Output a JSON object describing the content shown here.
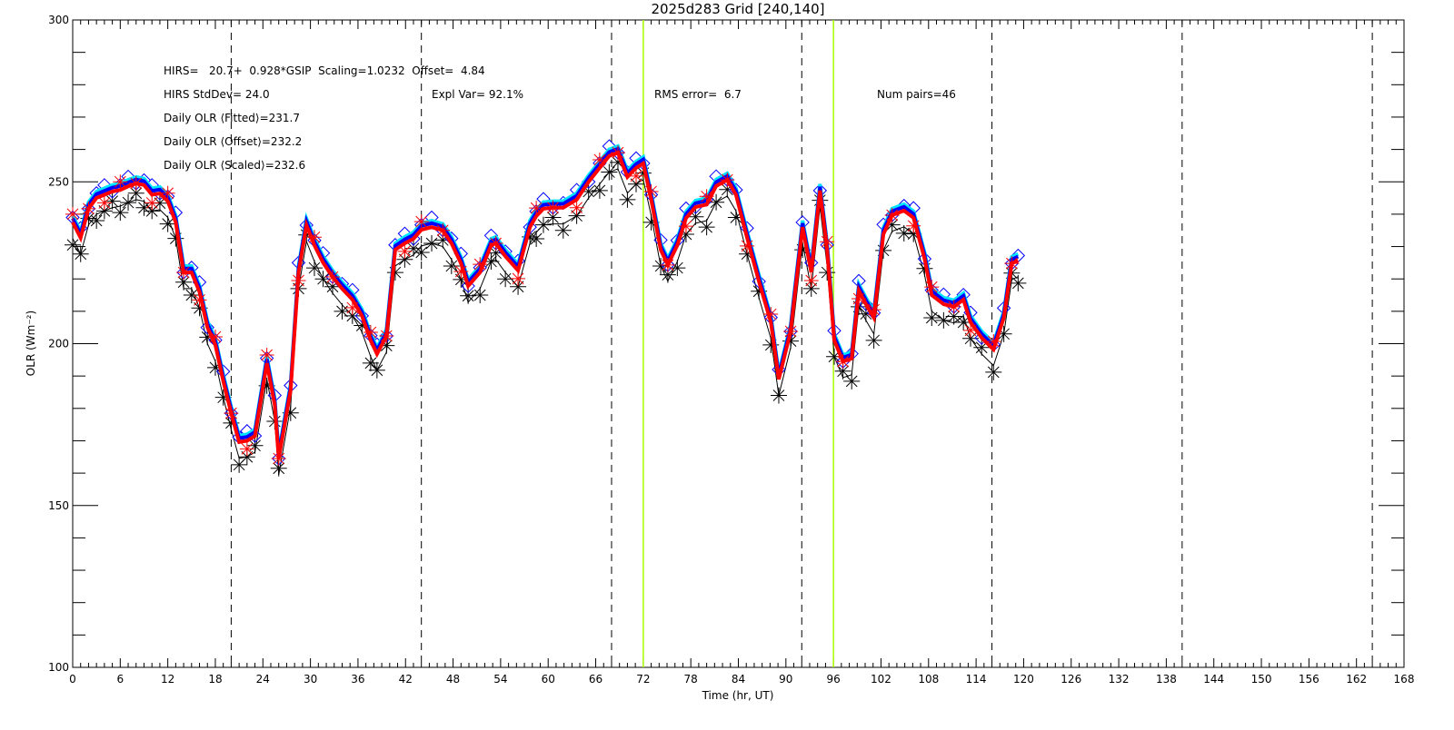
{
  "chart_data": {
    "type": "line",
    "title": "2025d283 Grid [240,140]",
    "xlabel": "Time (hr, UT)",
    "ylabel": "OLR (Wm⁻²)",
    "xlim": [
      0,
      168
    ],
    "ylim": [
      100,
      300
    ],
    "xticks": [
      0,
      6,
      12,
      18,
      24,
      30,
      36,
      42,
      48,
      54,
      60,
      66,
      72,
      78,
      84,
      90,
      96,
      102,
      108,
      114,
      120,
      126,
      132,
      138,
      144,
      150,
      156,
      162,
      168
    ],
    "yticks": [
      100,
      150,
      200,
      250,
      300
    ],
    "grid": false,
    "dashed_vlines": [
      20,
      44,
      68,
      92,
      116,
      140,
      164
    ],
    "green_vlines": [
      72,
      96
    ],
    "colors": {
      "scaled": "#ff0000",
      "offset": "#0000ff",
      "fitted": "#00e5ff",
      "gsip": "#000000",
      "hirs_diamond": "#0000ff",
      "hirs_star": "#ff0000",
      "green": "#aaff00"
    },
    "annotations": {
      "line1": "HIRS=   20.7+  0.928*GSIP  Scaling=1.0232  Offset=  4.84",
      "stddev": "HIRS StdDev= 24.0",
      "expl_var": "Expl Var= 92.1%",
      "rms": "RMS error=  6.7",
      "pairs": "Num pairs=46",
      "fitted": "Daily OLR ⟨Fitted⟩=231.7",
      "offset": "Daily OLR ⟨Offset⟩=232.2",
      "scaled": "Daily OLR ⟨Scaled⟩=232.6"
    },
    "x": [
      0,
      1,
      2,
      3,
      4,
      5,
      6,
      7,
      8,
      9,
      10,
      11,
      12,
      13,
      14,
      15,
      16,
      17,
      18,
      19,
      20,
      21,
      22,
      23,
      24.5,
      25.5,
      26,
      27.5,
      28.5,
      29.5,
      30.5,
      31.6,
      32.8,
      34,
      35.3,
      36.5,
      37.6,
      38.4,
      39.6,
      40.7,
      41.9,
      43,
      44,
      45.3,
      46.7,
      47.8,
      49,
      49.9,
      51.4,
      52.8,
      53.4,
      54.6,
      56.2,
      57.7,
      58.5,
      59.4,
      60.6,
      61.9,
      63.6,
      65.1,
      66.5,
      67.7,
      68.8,
      70,
      71.1,
      72,
      73,
      74.2,
      75.1,
      76.3,
      77.4,
      78.6,
      80,
      81.2,
      82.6,
      83.7,
      85.1,
      86.6,
      88.1,
      89.1,
      90.6,
      92.1,
      93.2,
      94.3,
      95.2,
      96.1,
      97.2,
      98.3,
      99.2,
      100.1,
      101.1,
      102.3,
      103.4,
      104.9,
      106.1,
      107.5,
      108.4,
      109.9,
      111.2,
      112.4,
      113.3,
      114.7,
      116.2,
      117.5,
      118.5,
      119.3
    ],
    "series": [
      {
        "name": "Scaled",
        "values": [
          237.5,
          232.7,
          241.7,
          245,
          246,
          247,
          247.5,
          248.6,
          249.5,
          249,
          246,
          246.4,
          244,
          237.5,
          222,
          222,
          216,
          205,
          199.6,
          188.4,
          178.5,
          169.6,
          170,
          171.5,
          194,
          181,
          164.5,
          185.6,
          222,
          236.6,
          230.4,
          225,
          220.6,
          217,
          213.6,
          208.6,
          201,
          196.8,
          202.4,
          229,
          231,
          232.4,
          235.2,
          236,
          235,
          231,
          224.8,
          217.8,
          222,
          230.4,
          231,
          227,
          222.6,
          236,
          239.4,
          241.7,
          242,
          242,
          244.5,
          250,
          254.3,
          258,
          259,
          251.5,
          254.3,
          255.7,
          244.5,
          229,
          224.3,
          230.4,
          238.8,
          242.2,
          243,
          248.7,
          250.6,
          246,
          232.7,
          219.2,
          206.6,
          189,
          203.8,
          236,
          222,
          247.3,
          229,
          201,
          194.5,
          195.4,
          216.4,
          212.2,
          208,
          233.8,
          239.7,
          241.1,
          238.9,
          226.2,
          215,
          212.2,
          211.4,
          213.6,
          206.6,
          201.8,
          198.2,
          208,
          224.8,
          225.7
        ]
      }
    ],
    "series_shifts": {
      "offset": 1.2,
      "fitted": 2.0,
      "gsip": -5,
      "hirs_diamond": 1.5,
      "hirs_star": 0
    }
  }
}
